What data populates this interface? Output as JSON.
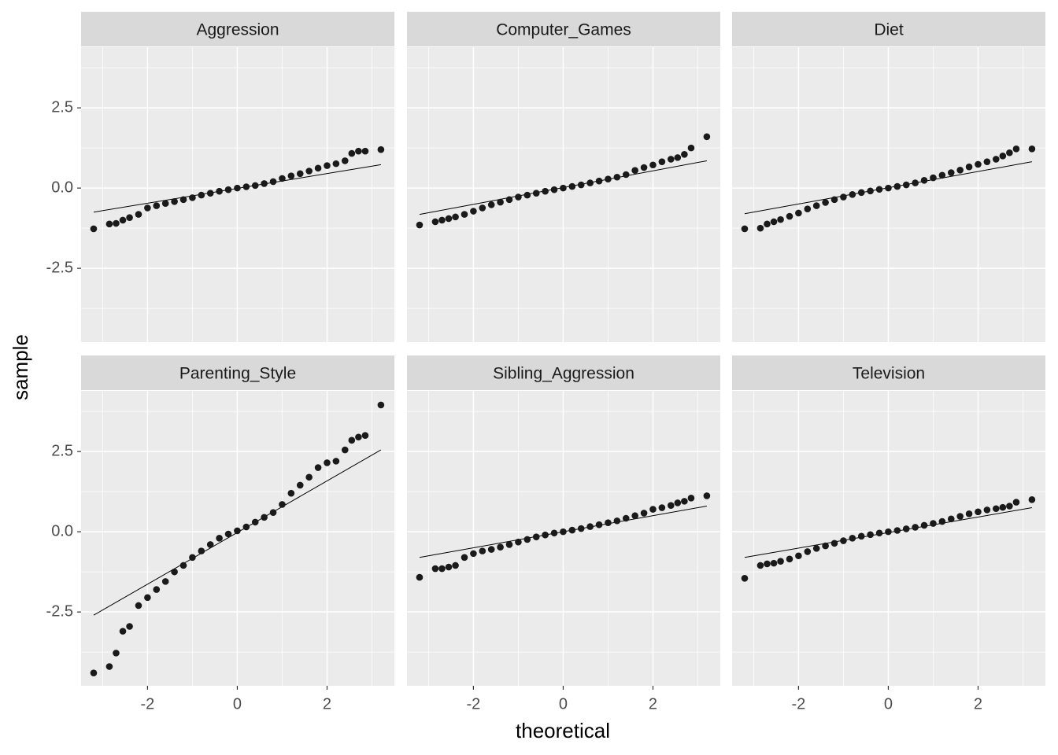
{
  "chart_data": {
    "type": "facet-qq",
    "x_label": "theoretical",
    "y_label": "sample",
    "xlim": [
      -3.48,
      3.5
    ],
    "ylim": [
      -4.8,
      4.39
    ],
    "xticks": [
      -2,
      0,
      2
    ],
    "yticks": [
      {
        "value": -2.5,
        "label": "-2.5"
      },
      {
        "value": 0,
        "label": "0.0"
      },
      {
        "value": 2.5,
        "label": "2.5"
      }
    ],
    "x_minor": [
      -3,
      -1,
      1,
      3
    ],
    "y_minor": [
      -3.75,
      -1.25,
      1.25,
      3.75
    ],
    "point_color": "#1a1a1a",
    "line_color": "#000000",
    "panels": [
      {
        "title": "Aggression",
        "x": [
          -3.2,
          -2.85,
          -2.7,
          -2.55,
          -2.4,
          -2.2,
          -2.0,
          -1.8,
          -1.6,
          -1.4,
          -1.2,
          -1.0,
          -0.8,
          -0.6,
          -0.4,
          -0.2,
          0,
          0.2,
          0.4,
          0.6,
          0.8,
          1.0,
          1.2,
          1.4,
          1.6,
          1.8,
          2.0,
          2.2,
          2.4,
          2.55,
          2.7,
          2.85,
          3.2
        ],
        "values": [
          -1.27,
          -1.12,
          -1.1,
          -1.0,
          -0.92,
          -0.82,
          -0.62,
          -0.55,
          -0.48,
          -0.42,
          -0.36,
          -0.3,
          -0.22,
          -0.16,
          -0.1,
          -0.05,
          0,
          0.04,
          0.08,
          0.14,
          0.2,
          0.3,
          0.38,
          0.45,
          0.53,
          0.62,
          0.7,
          0.76,
          0.85,
          1.08,
          1.15,
          1.15,
          1.2
        ],
        "line": {
          "x": [
            -3.2,
            3.2
          ],
          "y": [
            -0.75,
            0.73
          ]
        }
      },
      {
        "title": "Computer_Games",
        "x": [
          -3.2,
          -2.85,
          -2.7,
          -2.55,
          -2.4,
          -2.2,
          -2.0,
          -1.8,
          -1.6,
          -1.4,
          -1.2,
          -1.0,
          -0.8,
          -0.6,
          -0.4,
          -0.2,
          0,
          0.2,
          0.4,
          0.6,
          0.8,
          1.0,
          1.2,
          1.4,
          1.6,
          1.8,
          2.0,
          2.2,
          2.4,
          2.55,
          2.7,
          2.85,
          3.2
        ],
        "values": [
          -1.15,
          -1.05,
          -1.0,
          -0.95,
          -0.9,
          -0.82,
          -0.72,
          -0.62,
          -0.52,
          -0.44,
          -0.36,
          -0.28,
          -0.22,
          -0.16,
          -0.1,
          -0.05,
          0,
          0.05,
          0.1,
          0.16,
          0.22,
          0.28,
          0.34,
          0.42,
          0.55,
          0.64,
          0.72,
          0.82,
          0.9,
          0.95,
          1.05,
          1.25,
          1.6
        ],
        "line": {
          "x": [
            -3.2,
            3.2
          ],
          "y": [
            -0.82,
            0.85
          ]
        }
      },
      {
        "title": "Diet",
        "x": [
          -3.2,
          -2.85,
          -2.7,
          -2.55,
          -2.4,
          -2.2,
          -2.0,
          -1.8,
          -1.6,
          -1.4,
          -1.2,
          -1.0,
          -0.8,
          -0.6,
          -0.4,
          -0.2,
          0,
          0.2,
          0.4,
          0.6,
          0.8,
          1.0,
          1.2,
          1.4,
          1.6,
          1.8,
          2.0,
          2.2,
          2.4,
          2.55,
          2.7,
          2.85,
          3.2
        ],
        "values": [
          -1.27,
          -1.25,
          -1.12,
          -1.05,
          -0.98,
          -0.88,
          -0.78,
          -0.65,
          -0.55,
          -0.45,
          -0.36,
          -0.28,
          -0.2,
          -0.14,
          -0.09,
          -0.04,
          0,
          0.05,
          0.1,
          0.16,
          0.24,
          0.32,
          0.4,
          0.48,
          0.56,
          0.66,
          0.74,
          0.82,
          0.9,
          1.0,
          1.1,
          1.22,
          1.22
        ],
        "line": {
          "x": [
            -3.2,
            3.2
          ],
          "y": [
            -0.8,
            0.82
          ]
        }
      },
      {
        "title": "Parenting_Style",
        "x": [
          -3.2,
          -2.85,
          -2.7,
          -2.55,
          -2.4,
          -2.2,
          -2.0,
          -1.8,
          -1.6,
          -1.4,
          -1.2,
          -1.0,
          -0.8,
          -0.6,
          -0.4,
          -0.2,
          0,
          0.2,
          0.4,
          0.6,
          0.8,
          1.0,
          1.2,
          1.4,
          1.6,
          1.8,
          2.0,
          2.2,
          2.4,
          2.55,
          2.7,
          2.85,
          3.2
        ],
        "values": [
          -4.4,
          -4.2,
          -3.78,
          -3.1,
          -2.95,
          -2.3,
          -2.05,
          -1.8,
          -1.55,
          -1.25,
          -1.05,
          -0.8,
          -0.6,
          -0.4,
          -0.2,
          -0.07,
          0.03,
          0.15,
          0.3,
          0.45,
          0.6,
          0.85,
          1.2,
          1.45,
          1.7,
          2.0,
          2.15,
          2.2,
          2.55,
          2.85,
          2.95,
          3.0,
          3.95
        ],
        "line": {
          "x": [
            -3.2,
            3.2
          ],
          "y": [
            -2.6,
            2.55
          ]
        }
      },
      {
        "title": "Sibling_Aggression",
        "x": [
          -3.2,
          -2.85,
          -2.7,
          -2.55,
          -2.4,
          -2.2,
          -2.0,
          -1.8,
          -1.6,
          -1.4,
          -1.2,
          -1.0,
          -0.8,
          -0.6,
          -0.4,
          -0.2,
          0,
          0.2,
          0.4,
          0.6,
          0.8,
          1.0,
          1.2,
          1.4,
          1.6,
          1.8,
          2.0,
          2.2,
          2.4,
          2.55,
          2.7,
          2.85,
          3.2
        ],
        "values": [
          -1.42,
          -1.15,
          -1.15,
          -1.1,
          -1.05,
          -0.8,
          -0.68,
          -0.6,
          -0.55,
          -0.48,
          -0.4,
          -0.32,
          -0.24,
          -0.16,
          -0.1,
          -0.04,
          0,
          0.05,
          0.1,
          0.16,
          0.22,
          0.28,
          0.34,
          0.42,
          0.5,
          0.58,
          0.7,
          0.75,
          0.82,
          0.9,
          0.95,
          1.05,
          1.12
        ],
        "line": {
          "x": [
            -3.2,
            3.2
          ],
          "y": [
            -0.8,
            0.8
          ]
        }
      },
      {
        "title": "Television",
        "x": [
          -3.2,
          -2.85,
          -2.7,
          -2.55,
          -2.4,
          -2.2,
          -2.0,
          -1.8,
          -1.6,
          -1.4,
          -1.2,
          -1.0,
          -0.8,
          -0.6,
          -0.4,
          -0.2,
          0,
          0.2,
          0.4,
          0.6,
          0.8,
          1.0,
          1.2,
          1.4,
          1.6,
          1.8,
          2.0,
          2.2,
          2.4,
          2.55,
          2.7,
          2.85,
          3.2
        ],
        "values": [
          -1.45,
          -1.05,
          -1.0,
          -0.98,
          -0.92,
          -0.85,
          -0.75,
          -0.62,
          -0.52,
          -0.44,
          -0.36,
          -0.28,
          -0.2,
          -0.14,
          -0.09,
          -0.04,
          0,
          0.04,
          0.09,
          0.14,
          0.2,
          0.26,
          0.32,
          0.4,
          0.48,
          0.56,
          0.62,
          0.68,
          0.72,
          0.76,
          0.8,
          0.92,
          1.0
        ],
        "line": {
          "x": [
            -3.2,
            3.2
          ],
          "y": [
            -0.8,
            0.75
          ]
        }
      }
    ]
  }
}
